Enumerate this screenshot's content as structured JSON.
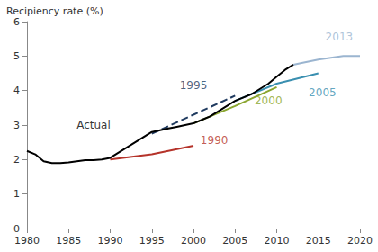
{
  "chart_data": {
    "type": "line",
    "title": "Recipiency rate (%)",
    "xlim": [
      1980,
      2020
    ],
    "xticks": [
      1980,
      1985,
      1990,
      1995,
      2000,
      2005,
      2010,
      2015,
      2020
    ],
    "ylim": [
      0,
      6
    ],
    "yticks": [
      0,
      1,
      2,
      3,
      4,
      5,
      6
    ],
    "grid": false,
    "series": [
      {
        "name": "Actual",
        "color": "#000000",
        "line_style": "solid",
        "x": [
          1980,
          1981,
          1982,
          1983,
          1984,
          1985,
          1986,
          1987,
          1988,
          1989,
          1990,
          1991,
          1992,
          1993,
          1994,
          1995,
          1996,
          1997,
          1998,
          1999,
          2000,
          2001,
          2002,
          2003,
          2004,
          2005,
          2006,
          2007,
          2008,
          2009,
          2010,
          2011,
          2012
        ],
        "values": [
          2.25,
          2.15,
          1.95,
          1.9,
          1.9,
          1.92,
          1.95,
          1.98,
          1.98,
          2.0,
          2.05,
          2.2,
          2.35,
          2.5,
          2.65,
          2.8,
          2.85,
          2.9,
          2.95,
          3.0,
          3.05,
          3.15,
          3.25,
          3.4,
          3.55,
          3.7,
          3.8,
          3.9,
          4.05,
          4.2,
          4.4,
          4.6,
          4.75
        ]
      },
      {
        "name": "1990",
        "color": "#b5332a",
        "line_style": "solid",
        "x": [
          1990,
          1995,
          2000
        ],
        "values": [
          2.0,
          2.15,
          2.4
        ]
      },
      {
        "name": "1995",
        "color": "#1f3a5f",
        "line_style": "dashed",
        "x": [
          1995,
          2000,
          2005
        ],
        "values": [
          2.75,
          3.3,
          3.85
        ]
      },
      {
        "name": "2000",
        "color": "#8aa52e",
        "line_style": "solid",
        "x": [
          2000,
          2005,
          2010
        ],
        "values": [
          3.05,
          3.55,
          4.1
        ]
      },
      {
        "name": "2005",
        "color": "#3a8fb0",
        "line_style": "solid",
        "x": [
          2005,
          2010,
          2015
        ],
        "values": [
          3.7,
          4.2,
          4.5
        ]
      },
      {
        "name": "2013",
        "color": "#9bb5d0",
        "line_style": "solid",
        "x": [
          2012,
          2013,
          2015,
          2018,
          2020
        ],
        "values": [
          4.75,
          4.8,
          4.9,
          5.0,
          5.0
        ]
      }
    ],
    "annotations": [
      {
        "text": "Actual",
        "x": 1988,
        "y": 3.0,
        "color": "#000000"
      },
      {
        "text": "1990",
        "x": 2002.5,
        "y": 2.55,
        "color": "#b5332a"
      },
      {
        "text": "1995",
        "x": 2000,
        "y": 4.15,
        "color": "#1f3a5f"
      },
      {
        "text": "2000",
        "x": 2009,
        "y": 3.7,
        "color": "#8aa52e"
      },
      {
        "text": "2005",
        "x": 2015.5,
        "y": 3.95,
        "color": "#3a8fb0"
      },
      {
        "text": "2013",
        "x": 2017.5,
        "y": 5.55,
        "color": "#9bb5d0"
      }
    ]
  }
}
